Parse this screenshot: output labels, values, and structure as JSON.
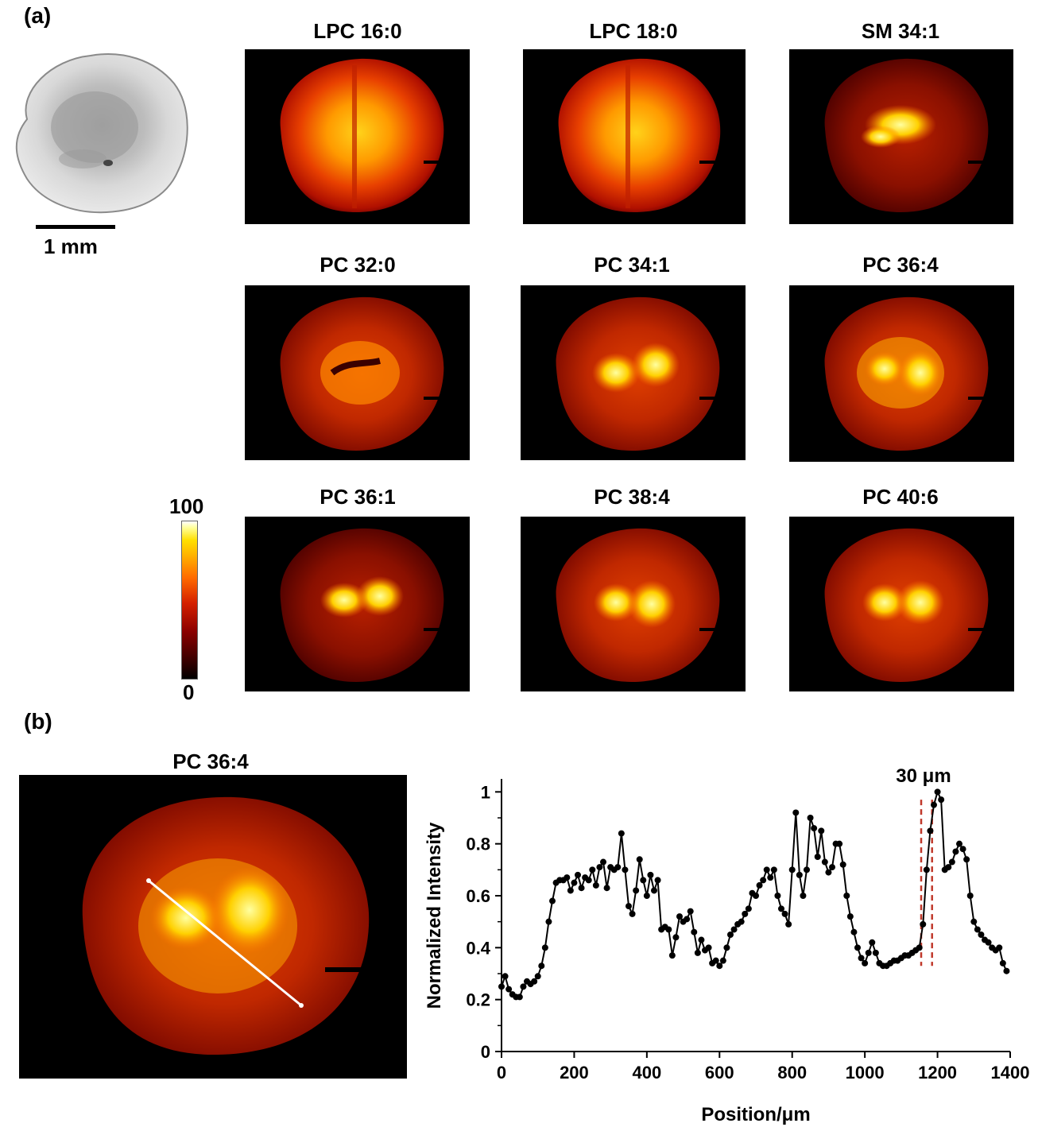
{
  "panel_a": {
    "label": "(a)",
    "scale_text": "1 mm",
    "colorbar": {
      "max_label": "100",
      "min_label": "0"
    },
    "ion_images": [
      {
        "title": "LPC 16:0"
      },
      {
        "title": "LPC 18:0"
      },
      {
        "title": "SM 34:1"
      },
      {
        "title": "PC 32:0"
      },
      {
        "title": "PC 34:1"
      },
      {
        "title": "PC 36:4"
      },
      {
        "title": "PC 36:1"
      },
      {
        "title": "PC 38:4"
      },
      {
        "title": "PC 40:6"
      }
    ]
  },
  "panel_b": {
    "label": "(b)",
    "image_title": "PC 36:4",
    "annotation": "30 μm"
  },
  "chart_data": {
    "type": "line",
    "title": "",
    "xlabel": "Position/μm",
    "ylabel": "Normalized Intensity",
    "xlim": [
      0,
      1400
    ],
    "ylim": [
      0,
      1.05
    ],
    "xticks": [
      0,
      200,
      400,
      600,
      800,
      1000,
      1200,
      1400
    ],
    "yticks": [
      0,
      0.2,
      0.4,
      0.6,
      0.8,
      1
    ],
    "ytick_labels": [
      "0",
      "0.2",
      "0.4",
      "0.6",
      "0.8",
      "1"
    ],
    "markers": true,
    "reference_lines_x": [
      1155,
      1185
    ],
    "series": [
      {
        "values_x": [
          0,
          10,
          20,
          30,
          40,
          50,
          60,
          70,
          80,
          90,
          100,
          110,
          120,
          130,
          140,
          150,
          160,
          170,
          180,
          190,
          200,
          210,
          220,
          230,
          240,
          250,
          260,
          270,
          280,
          290,
          300,
          310,
          320,
          330,
          340,
          350,
          360,
          370,
          380,
          390,
          400,
          410,
          420,
          430,
          440,
          450,
          460,
          470,
          480,
          490,
          500,
          510,
          520,
          530,
          540,
          550,
          560,
          570,
          580,
          590,
          600,
          610,
          620,
          630,
          640,
          650,
          660,
          670,
          680,
          690,
          700,
          710,
          720,
          730,
          740,
          750,
          760,
          770,
          780,
          790,
          800,
          810,
          820,
          830,
          840,
          850,
          860,
          870,
          880,
          890,
          900,
          910,
          920,
          930,
          940,
          950,
          960,
          970,
          980,
          990,
          1000,
          1010,
          1020,
          1030,
          1040,
          1050,
          1060,
          1070,
          1080,
          1090,
          1100,
          1110,
          1120,
          1130,
          1140,
          1150,
          1160,
          1170,
          1180,
          1190,
          1200,
          1210,
          1220,
          1230,
          1240,
          1250,
          1260,
          1270,
          1280,
          1290,
          1300,
          1310,
          1320,
          1330,
          1340,
          1350,
          1360,
          1370,
          1380,
          1390
        ],
        "values_y": [
          0.25,
          0.29,
          0.24,
          0.22,
          0.21,
          0.21,
          0.25,
          0.27,
          0.26,
          0.27,
          0.29,
          0.33,
          0.4,
          0.5,
          0.58,
          0.65,
          0.66,
          0.66,
          0.67,
          0.62,
          0.65,
          0.68,
          0.63,
          0.67,
          0.66,
          0.7,
          0.64,
          0.71,
          0.73,
          0.63,
          0.71,
          0.7,
          0.71,
          0.84,
          0.7,
          0.56,
          0.53,
          0.62,
          0.74,
          0.66,
          0.6,
          0.68,
          0.62,
          0.66,
          0.47,
          0.48,
          0.47,
          0.37,
          0.44,
          0.52,
          0.5,
          0.51,
          0.54,
          0.46,
          0.38,
          0.43,
          0.39,
          0.4,
          0.34,
          0.35,
          0.33,
          0.35,
          0.4,
          0.45,
          0.47,
          0.49,
          0.5,
          0.53,
          0.55,
          0.61,
          0.6,
          0.64,
          0.66,
          0.7,
          0.67,
          0.7,
          0.6,
          0.55,
          0.53,
          0.49,
          0.7,
          0.92,
          0.68,
          0.6,
          0.7,
          0.9,
          0.86,
          0.75,
          0.85,
          0.73,
          0.69,
          0.71,
          0.8,
          0.8,
          0.72,
          0.6,
          0.52,
          0.46,
          0.4,
          0.36,
          0.34,
          0.38,
          0.42,
          0.38,
          0.34,
          0.33,
          0.33,
          0.34,
          0.35,
          0.35,
          0.36,
          0.37,
          0.37,
          0.38,
          0.39,
          0.4,
          0.49,
          0.7,
          0.85,
          0.95,
          1.0,
          0.97,
          0.7,
          0.71,
          0.73,
          0.77,
          0.8,
          0.78,
          0.74,
          0.6,
          0.5,
          0.47,
          0.45,
          0.43,
          0.42,
          0.4,
          0.39,
          0.4,
          0.34,
          0.31
        ]
      }
    ]
  }
}
